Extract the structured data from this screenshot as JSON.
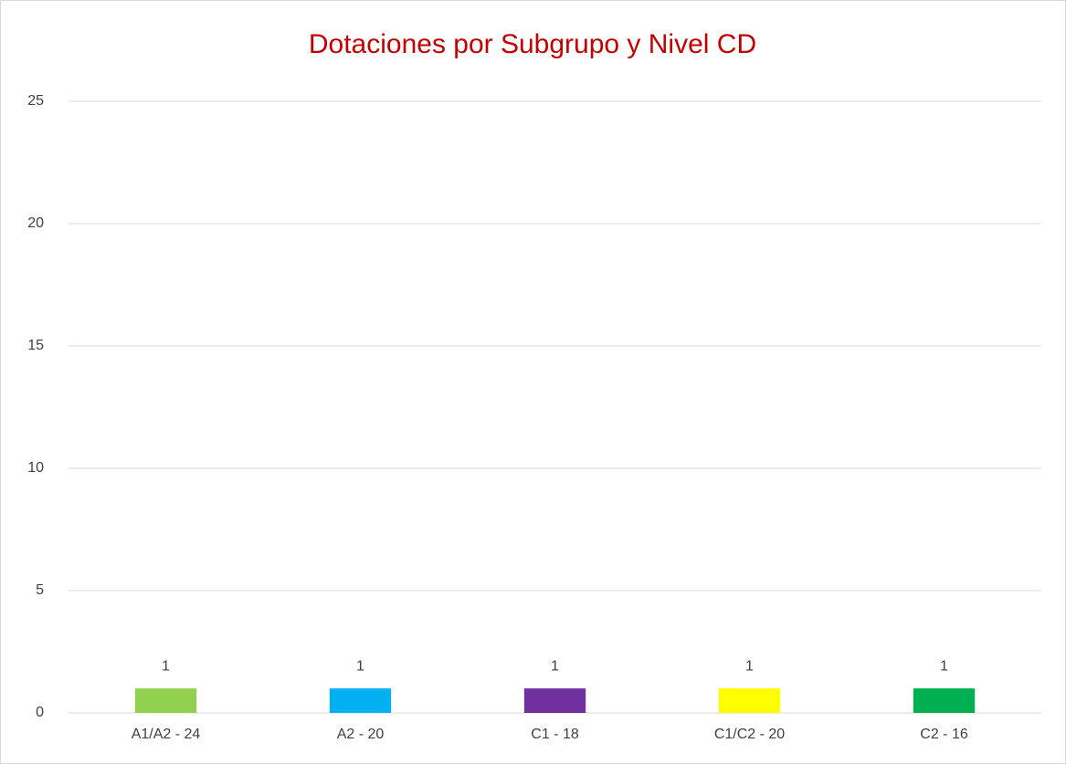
{
  "chart_data": {
    "type": "bar",
    "title": "Dotaciones por Subgrupo y Nivel CD",
    "categories": [
      "A1/A2 - 24",
      "A2 - 20",
      "C1 - 18",
      "C1/C2 - 20",
      "C2 - 16"
    ],
    "values": [
      1,
      1,
      1,
      1,
      1
    ],
    "colors": [
      "#92d050",
      "#00b0f0",
      "#7030a0",
      "#ffff00",
      "#00b050"
    ],
    "ylim": [
      0,
      25
    ],
    "yticks": [
      0,
      5,
      10,
      15,
      20,
      25
    ],
    "grid": true
  }
}
